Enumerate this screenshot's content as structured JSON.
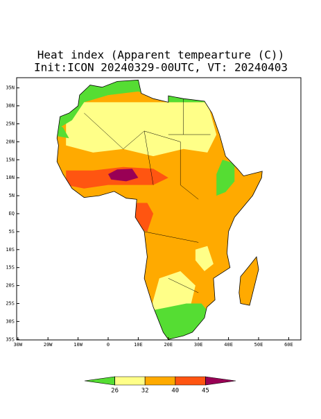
{
  "map": {
    "title": "Heat index (Apparent tempearture (C))",
    "subtitle": "Init:ICON 20240329-00UTC, VT: 20240403",
    "lat_ticks": [
      {
        "value": 35,
        "label": "35N"
      },
      {
        "value": 30,
        "label": "30N"
      },
      {
        "value": 25,
        "label": "25N"
      },
      {
        "value": 20,
        "label": "20N"
      },
      {
        "value": 15,
        "label": "15N"
      },
      {
        "value": 10,
        "label": "10N"
      },
      {
        "value": 5,
        "label": "5N"
      },
      {
        "value": 0,
        "label": "EQ"
      },
      {
        "value": -5,
        "label": "5S"
      },
      {
        "value": -10,
        "label": "10S"
      },
      {
        "value": -15,
        "label": "15S"
      },
      {
        "value": -20,
        "label": "20S"
      },
      {
        "value": -25,
        "label": "25S"
      },
      {
        "value": -30,
        "label": "30S"
      },
      {
        "value": -35,
        "label": "35S"
      }
    ],
    "lon_ticks": [
      {
        "value": -30,
        "label": "30W"
      },
      {
        "value": -20,
        "label": "20W"
      },
      {
        "value": -10,
        "label": "10W"
      },
      0,
      {
        "value": 10,
        "label": "10E"
      },
      {
        "value": 20,
        "label": "20E"
      },
      {
        "value": 30,
        "label": "30E"
      },
      {
        "value": 40,
        "label": "40E"
      },
      {
        "value": 50,
        "label": "50E"
      },
      {
        "value": 60,
        "label": "60E"
      }
    ],
    "colorbar": {
      "levels": [
        26,
        32,
        40,
        45
      ],
      "colors": [
        "#55dd33",
        "#ffff88",
        "#ffaa00",
        "#ff5511",
        "#990055"
      ]
    }
  }
}
